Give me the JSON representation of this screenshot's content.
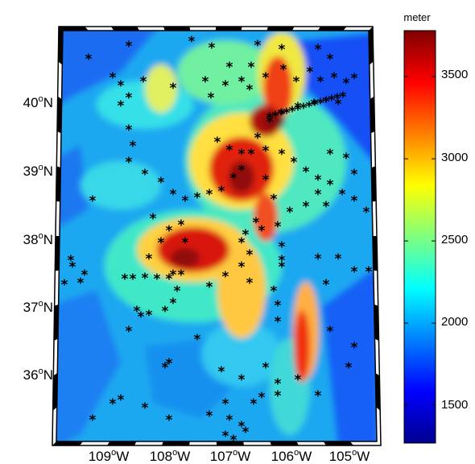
{
  "map": {
    "projection_note": "",
    "latitude_labels": [
      {
        "deg": "40",
        "hemi": "N",
        "lat": 40
      },
      {
        "deg": "39",
        "hemi": "N",
        "lat": 39
      },
      {
        "deg": "38",
        "hemi": "N",
        "lat": 38
      },
      {
        "deg": "37",
        "hemi": "N",
        "lat": 37
      },
      {
        "deg": "36",
        "hemi": "N",
        "lat": 36
      }
    ],
    "longitude_labels": [
      {
        "deg": "109",
        "hemi": "W",
        "lon": -109
      },
      {
        "deg": "108",
        "hemi": "W",
        "lon": -108
      },
      {
        "deg": "107",
        "hemi": "W",
        "lon": -107
      },
      {
        "deg": "106",
        "hemi": "W",
        "lon": -106
      },
      {
        "deg": "105",
        "hemi": "W",
        "lon": -105
      }
    ],
    "marker_symbol": "*",
    "marker_color": "#000000"
  },
  "colorbar": {
    "title": "meter",
    "ticks": [
      "3500",
      "3000",
      "2500",
      "2000",
      "1500"
    ],
    "tick_values": [
      3500,
      3000,
      2500,
      2000,
      1500
    ],
    "range": [
      1270,
      3780
    ],
    "colormap": "jet",
    "colors": [
      "#800000",
      "#ff0000",
      "#ffff00",
      "#00ffff",
      "#0000ff",
      "#00008f"
    ]
  }
}
